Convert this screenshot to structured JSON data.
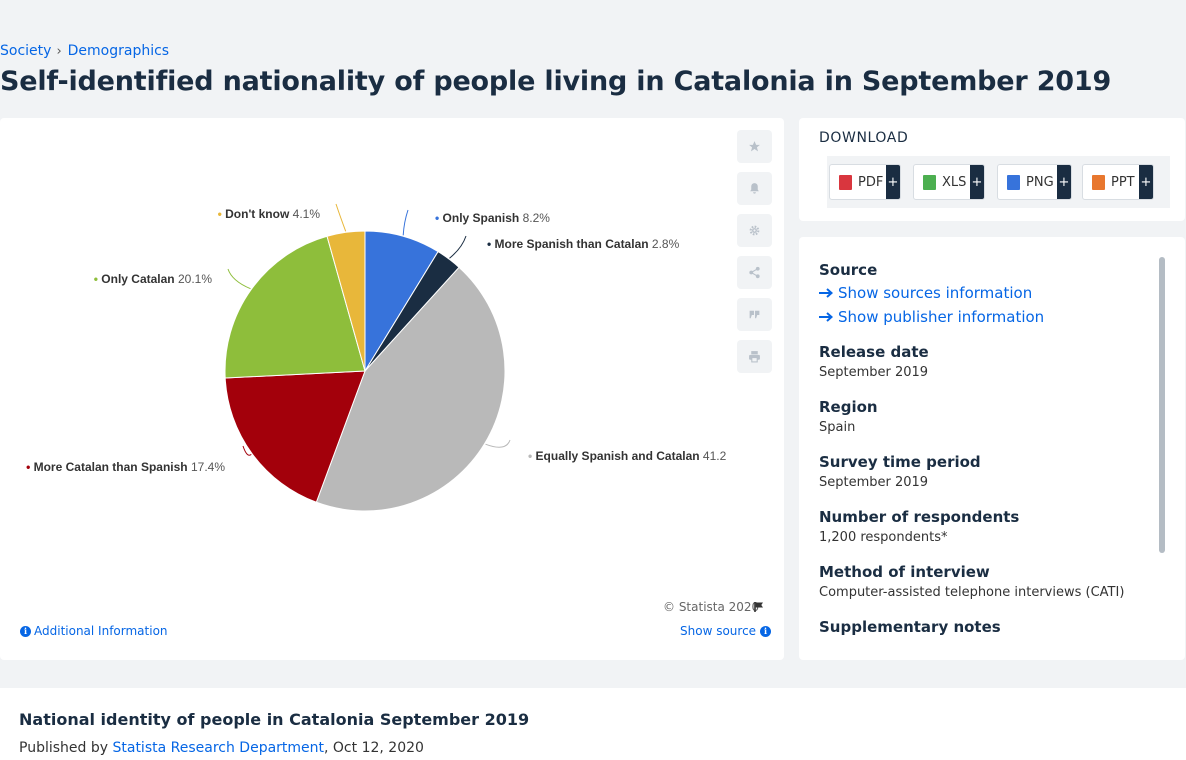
{
  "breadcrumb": {
    "items": [
      "Society",
      "Demographics"
    ],
    "separator": "›"
  },
  "page_title": "Self-identified nationality of people living in Catalonia in September 2019",
  "chart_data": {
    "type": "pie",
    "title": "",
    "unit": "%",
    "slices": [
      {
        "label": "Only Spanish",
        "value": 8.2,
        "display": "8.2%",
        "color": "#3773db"
      },
      {
        "label": "More Spanish than Catalan",
        "value": 2.8,
        "display": "2.8%",
        "color": "#1a2d42"
      },
      {
        "label": "Equally Spanish and Catalan",
        "value": 41.2,
        "display": "41.2",
        "color": "#b9b9b9"
      },
      {
        "label": "More Catalan than Spanish",
        "value": 17.4,
        "display": "17.4%",
        "color": "#a3000b"
      },
      {
        "label": "Only Catalan",
        "value": 20.1,
        "display": "20.1%",
        "color": "#8ebe3b"
      },
      {
        "label": "Don't know",
        "value": 4.1,
        "display": "4.1%",
        "color": "#e8b73a"
      }
    ]
  },
  "chart_footer": {
    "credit": "© Statista 2020",
    "additional_info": "Additional Information",
    "show_source": "Show source"
  },
  "toolbar": {
    "icons": [
      "star-icon",
      "bell-icon",
      "gear-icon",
      "share-icon",
      "quote-icon",
      "print-icon"
    ]
  },
  "download": {
    "title": "DOWNLOAD",
    "buttons": [
      {
        "label": "PDF",
        "color": "#d9363e"
      },
      {
        "label": "XLS",
        "color": "#4caf50"
      },
      {
        "label": "PNG",
        "color": "#3773db"
      },
      {
        "label": "PPT",
        "color": "#e8772e"
      }
    ],
    "plus": "+"
  },
  "source_panel": {
    "source_heading": "Source",
    "show_sources": "Show sources information",
    "show_publisher": "Show publisher information",
    "release_date_heading": "Release date",
    "release_date": "September 2019",
    "region_heading": "Region",
    "region": "Spain",
    "survey_period_heading": "Survey time period",
    "survey_period": "September 2019",
    "respondents_heading": "Number of respondents",
    "respondents": "1,200 respondents*",
    "method_heading": "Method of interview",
    "method": "Computer-assisted telephone interviews (CATI)",
    "notes_heading": "Supplementary notes"
  },
  "related": {
    "title": "National identity of people in Catalonia September 2019",
    "published_prefix": "Published by",
    "publisher": "Statista Research Department",
    "date": ", Oct 12, 2020"
  }
}
